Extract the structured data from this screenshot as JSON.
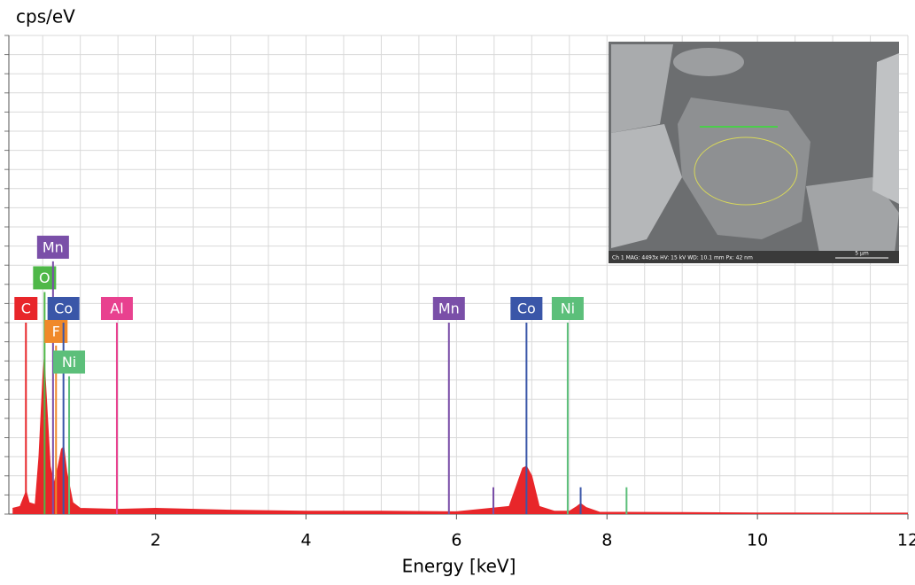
{
  "chart_data": {
    "type": "spectrum",
    "ylabel": "cps/eV",
    "xlabel": "Energy [keV]",
    "xlim": [
      0.05,
      12
    ],
    "xticks": [
      2,
      4,
      6,
      8,
      10,
      12
    ],
    "x_minor_step": 0.5,
    "ylim": [
      0,
      25
    ],
    "yticks": [
      0,
      1,
      2,
      3,
      4,
      5,
      6,
      7,
      8,
      9,
      10,
      11,
      12,
      13,
      14,
      15,
      16,
      17,
      18,
      19,
      20,
      21,
      22,
      23,
      24,
      25
    ],
    "show_ytick_labels": false,
    "grid": true,
    "series": [
      {
        "color": "#e8262a",
        "x": [
          0.1,
          0.2,
          0.25,
          0.28,
          0.32,
          0.4,
          0.45,
          0.5,
          0.52,
          0.55,
          0.6,
          0.65,
          0.7,
          0.75,
          0.78,
          0.82,
          0.9,
          1.0,
          1.5,
          2,
          3,
          4,
          5,
          6,
          6.7,
          6.8,
          6.88,
          6.93,
          7.0,
          7.1,
          7.3,
          7.5,
          7.6,
          7.65,
          7.72,
          7.9,
          9,
          10,
          11,
          12
        ],
        "values": [
          0.3,
          0.4,
          0.9,
          1.2,
          0.6,
          0.5,
          3,
          7,
          8.1,
          6,
          2.5,
          1.6,
          2.4,
          3.4,
          3.5,
          2.2,
          0.6,
          0.3,
          0.25,
          0.3,
          0.2,
          0.15,
          0.15,
          0.12,
          0.4,
          1.5,
          2.4,
          2.5,
          2,
          0.4,
          0.15,
          0.15,
          0.4,
          0.55,
          0.35,
          0.1,
          0.08,
          0.06,
          0.05,
          0.05
        ]
      }
    ],
    "element_lines": [
      {
        "label": "C",
        "energy": 0.277,
        "height": 10,
        "color": "#e8262a"
      },
      {
        "label": "O",
        "energy": 0.525,
        "height": 11.6,
        "color": "#4fb848"
      },
      {
        "label": "Mn",
        "energy": 0.637,
        "height": 13.2,
        "color": "#7a4fa8"
      },
      {
        "label": "F",
        "energy": 0.677,
        "height": 8.8,
        "color": "#f0892a"
      },
      {
        "label": "Co",
        "energy": 0.776,
        "height": 10,
        "color": "#3a56a8"
      },
      {
        "label": "Ni",
        "energy": 0.851,
        "height": 7.2,
        "color": "#5cbf7a"
      },
      {
        "label": "Al",
        "energy": 1.486,
        "height": 10,
        "color": "#e8418f"
      },
      {
        "label": "Mn",
        "energy": 5.899,
        "height": 10,
        "color": "#7a4fa8"
      },
      {
        "label": "Co",
        "energy": 6.93,
        "height": 10,
        "color": "#3a56a8"
      },
      {
        "label": "Ni",
        "energy": 7.478,
        "height": 10,
        "color": "#5cbf7a"
      }
    ],
    "minor_lines": [
      {
        "energy": 6.49,
        "height": 1.4,
        "color": "#7a4fa8"
      },
      {
        "energy": 7.65,
        "height": 1.4,
        "color": "#3a56a8"
      },
      {
        "energy": 8.26,
        "height": 1.4,
        "color": "#5cbf7a"
      }
    ],
    "inset": {
      "info": "Ch 1   MAG: 4493x   HV: 15 kV   WD: 10.1 mm   Px: 42 nm",
      "scale": "5 µm"
    }
  }
}
